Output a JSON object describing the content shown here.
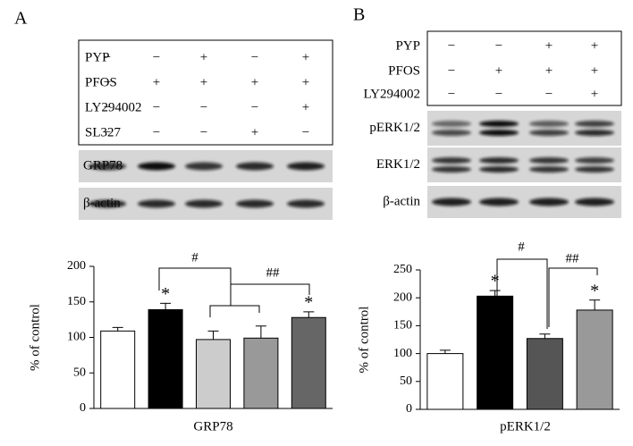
{
  "panels": [
    {
      "label": "A",
      "treatments": [
        {
          "name": "PYP",
          "signs": [
            "−",
            "−",
            "+",
            "−",
            "+"
          ]
        },
        {
          "name": "PFOS",
          "signs": [
            "−",
            "+",
            "+",
            "+",
            "+"
          ]
        },
        {
          "name": "LY294002",
          "signs": [
            "−",
            "−",
            "−",
            "−",
            "+"
          ]
        },
        {
          "name": "SL327",
          "signs": [
            "−",
            "−",
            "−",
            "+",
            "−"
          ]
        }
      ],
      "blots": [
        "GRP78",
        "β-actin"
      ]
    },
    {
      "label": "B",
      "treatments": [
        {
          "name": "PYP",
          "signs": [
            "−",
            "−",
            "+",
            "+"
          ]
        },
        {
          "name": "PFOS",
          "signs": [
            "−",
            "+",
            "+",
            "+"
          ]
        },
        {
          "name": "LY294002",
          "signs": [
            "−",
            "−",
            "−",
            "+"
          ]
        }
      ],
      "blots": [
        "pERK1/2",
        "ERK1/2",
        "β-actin"
      ]
    }
  ],
  "chart_data": [
    {
      "type": "bar",
      "ylabel": "% of control",
      "xlabel": "GRP78",
      "ylim": [
        0,
        200
      ],
      "yticks": [
        0,
        50,
        100,
        150,
        200
      ],
      "values": [
        109,
        139,
        97,
        99,
        128
      ],
      "errors": [
        5,
        9,
        12,
        17,
        8
      ],
      "colors": [
        "#ffffff",
        "#000000",
        "#cccccc",
        "#999999",
        "#666666"
      ],
      "significance": [
        null,
        "*",
        null,
        null,
        "*"
      ],
      "comparisons": [
        "#",
        "##"
      ]
    },
    {
      "type": "bar",
      "ylabel": "% of control",
      "xlabel": "pERK1/2",
      "ylim": [
        0,
        250
      ],
      "yticks": [
        0,
        50,
        100,
        150,
        200,
        250
      ],
      "values": [
        100,
        203,
        127,
        178
      ],
      "errors": [
        6,
        10,
        8,
        18
      ],
      "colors": [
        "#ffffff",
        "#000000",
        "#555555",
        "#999999"
      ],
      "significance": [
        null,
        "*",
        null,
        "*"
      ],
      "comparisons": [
        "#",
        "##"
      ]
    }
  ]
}
